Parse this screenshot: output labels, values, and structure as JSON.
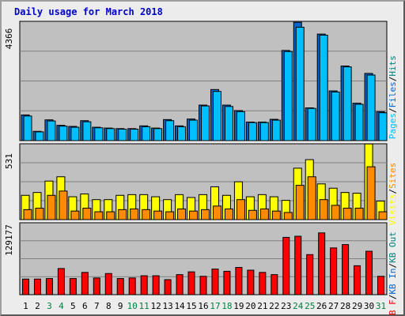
{
  "title": "Daily usage for March 2018",
  "colors": {
    "pages": "#00bfff",
    "files": "#0066cc",
    "hits": "#008080",
    "visits": "#ffff00",
    "sites": "#ff8c00",
    "kb_out": "#008080",
    "kb_in": "#0066cc",
    "kb_f": "#ff0000",
    "weekday_label": "#000000",
    "weekend_label": "#008040"
  },
  "chart_data": [
    {
      "type": "bar",
      "ylim": [
        0,
        4366
      ],
      "ymax_label": "4366",
      "right_labels": [
        {
          "text": "Pages",
          "color": "#00bfff"
        },
        {
          "text": "/",
          "color": "#000000"
        },
        {
          "text": "Files",
          "color": "#0066cc"
        },
        {
          "text": "/",
          "color": "#000000"
        },
        {
          "text": "Hits",
          "color": "#008080"
        }
      ],
      "series": [
        {
          "name": "Hits",
          "color": "#0066cc",
          "values": [
            940,
            340,
            760,
            560,
            520,
            730,
            490,
            460,
            440,
            440,
            540,
            460,
            770,
            540,
            790,
            1300,
            1870,
            1300,
            1100,
            680,
            680,
            780,
            3300,
            4330,
            1200,
            3900,
            1820,
            2730,
            1370,
            2460,
            1060
          ]
        },
        {
          "name": "Files",
          "color": "#00bfff",
          "values": [
            900,
            320,
            720,
            530,
            490,
            690,
            470,
            440,
            420,
            420,
            510,
            440,
            730,
            510,
            750,
            1270,
            1800,
            1250,
            1060,
            660,
            660,
            750,
            3260,
            4150,
            1180,
            3860,
            1780,
            2700,
            1330,
            2400,
            1020
          ]
        }
      ]
    },
    {
      "type": "bar",
      "ylim": [
        0,
        531
      ],
      "ymax_label": "531",
      "right_labels": [
        {
          "text": "Visits",
          "color": "#ffff00"
        },
        {
          "text": "/",
          "color": "#000000"
        },
        {
          "text": "Sites",
          "color": "#ff8c00"
        }
      ],
      "series": [
        {
          "name": "Visits",
          "color": "#ffff00",
          "values": [
            170,
            190,
            270,
            300,
            160,
            180,
            140,
            140,
            170,
            175,
            175,
            160,
            140,
            175,
            155,
            175,
            230,
            170,
            265,
            160,
            175,
            160,
            135,
            360,
            420,
            250,
            220,
            190,
            185,
            530,
            130
          ]
        },
        {
          "name": "Sites",
          "color": "#ff8c00",
          "values": [
            70,
            80,
            170,
            200,
            60,
            80,
            55,
            55,
            70,
            75,
            70,
            60,
            55,
            75,
            60,
            70,
            95,
            75,
            140,
            65,
            75,
            60,
            50,
            240,
            300,
            140,
            100,
            80,
            80,
            370,
            55
          ]
        }
      ]
    },
    {
      "type": "bar",
      "ylim": [
        0,
        129177
      ],
      "ymax_label": "129177",
      "right_labels": [
        {
          "text": "KB F",
          "color": "#ff0000"
        },
        {
          "text": "/",
          "color": "#000000"
        },
        {
          "text": "KB In",
          "color": "#0066cc"
        },
        {
          "text": "/",
          "color": "#000000"
        },
        {
          "text": "KB Out",
          "color": "#008080"
        }
      ],
      "series": [
        {
          "name": "KB F",
          "color": "#ff0000",
          "values": [
            28000,
            28000,
            29000,
            47000,
            29000,
            40000,
            30000,
            38000,
            29000,
            30000,
            34000,
            34000,
            27000,
            36000,
            41000,
            33000,
            46000,
            42000,
            49000,
            44000,
            40000,
            36000,
            103000,
            105000,
            72000,
            111000,
            84000,
            90000,
            52000,
            78000,
            33000
          ]
        }
      ]
    }
  ],
  "days": [
    {
      "label": "1",
      "weekend": false
    },
    {
      "label": "2",
      "weekend": false
    },
    {
      "label": "3",
      "weekend": true
    },
    {
      "label": "4",
      "weekend": true
    },
    {
      "label": "5",
      "weekend": false
    },
    {
      "label": "6",
      "weekend": false
    },
    {
      "label": "7",
      "weekend": false
    },
    {
      "label": "8",
      "weekend": false
    },
    {
      "label": "9",
      "weekend": false
    },
    {
      "label": "10",
      "weekend": true
    },
    {
      "label": "11",
      "weekend": true
    },
    {
      "label": "12",
      "weekend": false
    },
    {
      "label": "13",
      "weekend": false
    },
    {
      "label": "14",
      "weekend": false
    },
    {
      "label": "15",
      "weekend": false
    },
    {
      "label": "16",
      "weekend": false
    },
    {
      "label": "17",
      "weekend": true
    },
    {
      "label": "18",
      "weekend": true
    },
    {
      "label": "19",
      "weekend": false
    },
    {
      "label": "20",
      "weekend": false
    },
    {
      "label": "21",
      "weekend": false
    },
    {
      "label": "22",
      "weekend": false
    },
    {
      "label": "23",
      "weekend": false
    },
    {
      "label": "24",
      "weekend": true
    },
    {
      "label": "25",
      "weekend": true
    },
    {
      "label": "26",
      "weekend": false
    },
    {
      "label": "27",
      "weekend": false
    },
    {
      "label": "28",
      "weekend": false
    },
    {
      "label": "29",
      "weekend": false
    },
    {
      "label": "30",
      "weekend": false
    },
    {
      "label": "31",
      "weekend": true
    }
  ]
}
